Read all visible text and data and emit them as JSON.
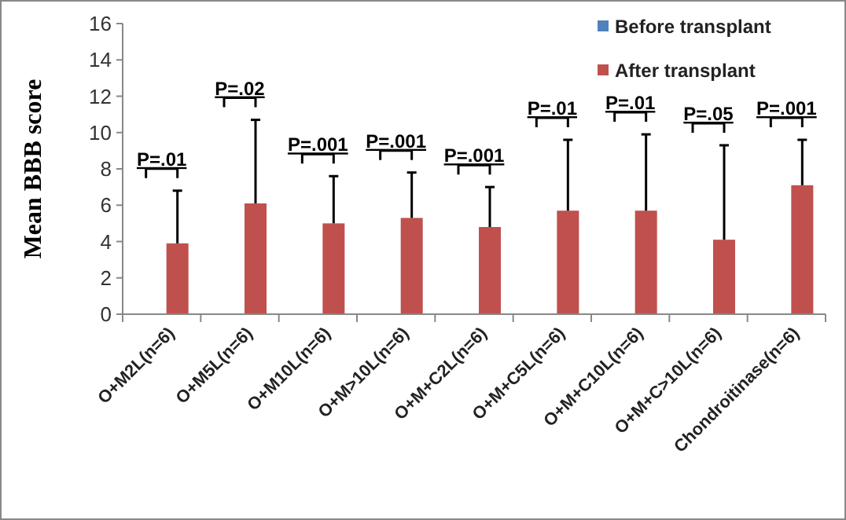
{
  "chart_data": {
    "type": "bar",
    "ylabel": "Mean BBB score",
    "categories": [
      "O+M2L(n=6)",
      "O+M5L(n=6)",
      "O+M10L(n=6)",
      "O+M>10L(n=6)",
      "O+M+C2L(n=6)",
      "O+M+C5L(n=6)",
      "O+M+C10L(n=6)",
      "O+M+C>10L(n=6)",
      "Chondroitinase(n=6)"
    ],
    "series": [
      {
        "name": "Before transplant",
        "color": "#4f81bd",
        "values": [
          0,
          0,
          0,
          0,
          0,
          0,
          0,
          0,
          0
        ]
      },
      {
        "name": "After transplant",
        "color": "#c0504d",
        "values": [
          3.9,
          6.1,
          5.0,
          5.3,
          4.8,
          5.7,
          5.7,
          4.1,
          7.1
        ],
        "errors": [
          [
            3.9,
            6.8
          ],
          [
            6.1,
            10.7
          ],
          [
            5.0,
            7.6
          ],
          [
            5.3,
            7.8
          ],
          [
            4.8,
            7.0
          ],
          [
            5.7,
            9.6
          ],
          [
            5.7,
            9.9
          ],
          [
            4.1,
            9.3
          ],
          [
            7.1,
            9.6
          ]
        ]
      }
    ],
    "ylim": [
      0,
      16
    ],
    "yticks": [
      0,
      2,
      4,
      6,
      8,
      10,
      12,
      14,
      16
    ],
    "grid": false,
    "legend": "top right",
    "annotations": [
      "P=.01",
      "P=.02",
      "P=.001",
      "P=.001",
      "P=.001",
      "P=.01",
      "P=.01",
      "P=.05",
      "P=.001"
    ]
  }
}
